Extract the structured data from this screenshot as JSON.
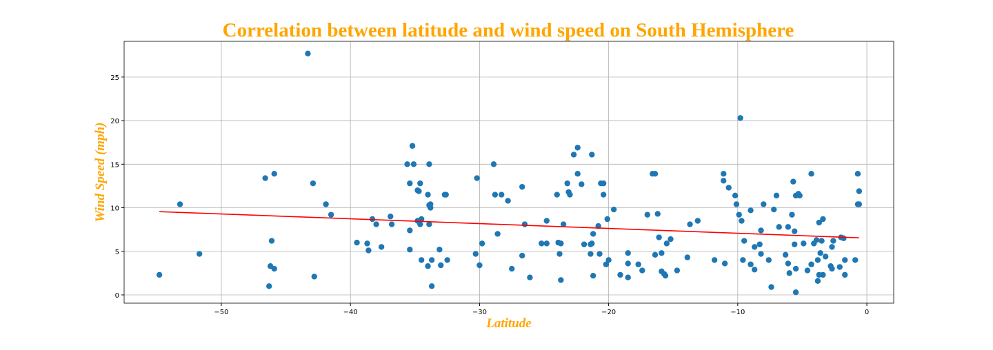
{
  "chart_data": {
    "type": "scatter",
    "title": "Correlation between latitude and wind speed on South Hemisphere",
    "x_label": "Latitude",
    "y_label": "Wind Speed (mph)",
    "color": "#1f77b4",
    "x": [
      -54.8,
      -53.2,
      -51.7,
      -46.6,
      -46.1,
      -46.3,
      -46.2,
      -45.9,
      -45.9,
      -43.3,
      -42.9,
      -42.8,
      -41.9,
      -41.5,
      -39.5,
      -38.7,
      -38.6,
      -38.3,
      -38.0,
      -37.6,
      -36.9,
      -36.8,
      -35.6,
      -35.4,
      -35.4,
      -35.4,
      -35.2,
      -35.1,
      -34.8,
      -34.8,
      -34.7,
      -34.6,
      -34.6,
      -34.5,
      -34.5,
      -34.0,
      -33.9,
      -34.0,
      -33.9,
      -33.9,
      -33.8,
      -33.7,
      -33.7,
      -33.8,
      -33.1,
      -33.0,
      -32.7,
      -32.6,
      -32.5,
      -30.3,
      -30.2,
      -30.0,
      -29.8,
      -28.9,
      -28.8,
      -28.6,
      -28.3,
      -27.8,
      -27.5,
      -26.7,
      -26.7,
      -26.5,
      -26.1,
      -25.2,
      -24.8,
      -24.8,
      -24.0,
      -23.9,
      -23.8,
      -23.7,
      -23.7,
      -23.5,
      -23.2,
      -23.1,
      -23.0,
      -22.7,
      -22.4,
      -22.4,
      -22.1,
      -21.9,
      -21.4,
      -21.4,
      -21.3,
      -21.3,
      -21.2,
      -21.2,
      -20.8,
      -20.7,
      -20.6,
      -20.4,
      -20.4,
      -20.2,
      -20.1,
      -20.0,
      -19.6,
      -19.1,
      -18.5,
      -18.5,
      -18.5,
      -17.7,
      -17.4,
      -17.0,
      -16.6,
      -16.4,
      -16.4,
      -16.2,
      -16.1,
      -15.9,
      -15.9,
      -15.7,
      -15.6,
      -15.5,
      -15.2,
      -14.7,
      -13.9,
      -13.7,
      -13.1,
      -11.8,
      -11.1,
      -11.1,
      -11.0,
      -10.7,
      -10.2,
      -10.1,
      -9.8,
      -9.9,
      -9.7,
      -9.5,
      -9.6,
      -9.0,
      -9.0,
      -8.7,
      -8.7,
      -8.3,
      -8.2,
      -8.2,
      -8.0,
      -7.6,
      -7.4,
      -7.2,
      -7.0,
      -6.8,
      -6.3,
      -6.1,
      -6.1,
      -6.0,
      -5.8,
      -5.7,
      -5.6,
      -5.6,
      -5.5,
      -5.5,
      -5.5,
      -5.3,
      -5.2,
      -4.9,
      -4.6,
      -4.3,
      -4.3,
      -4.1,
      -3.9,
      -3.8,
      -3.8,
      -3.7,
      -3.7,
      -3.6,
      -3.5,
      -3.4,
      -3.4,
      -3.2,
      -2.8,
      -2.7,
      -2.7,
      -2.6,
      -2.1,
      -2.0,
      -1.8,
      -1.7,
      -1.7,
      -0.9,
      -0.7,
      -0.7,
      -0.6,
      -0.6
    ],
    "values": [
      2.3,
      10.4,
      4.7,
      13.4,
      6.2,
      1.0,
      3.3,
      13.9,
      3.0,
      27.7,
      12.8,
      2.1,
      10.4,
      9.2,
      6.0,
      5.9,
      5.1,
      8.7,
      8.1,
      5.5,
      9.0,
      8.1,
      15.0,
      12.8,
      7.4,
      5.2,
      17.1,
      15.0,
      8.5,
      12.0,
      11.9,
      12.8,
      8.1,
      8.7,
      4.0,
      3.3,
      15.0,
      11.5,
      10.3,
      8.1,
      10.0,
      4.0,
      1.0,
      10.4,
      5.2,
      3.4,
      11.5,
      11.5,
      4.0,
      4.7,
      13.4,
      3.4,
      5.9,
      15.0,
      11.5,
      7.0,
      11.5,
      10.8,
      3.0,
      12.4,
      4.5,
      8.1,
      2.0,
      5.9,
      5.9,
      8.5,
      11.5,
      6.0,
      4.7,
      5.9,
      1.7,
      8.1,
      12.8,
      11.8,
      11.5,
      16.1,
      16.9,
      13.9,
      12.7,
      5.8,
      5.8,
      4.7,
      5.9,
      16.1,
      7.0,
      2.2,
      7.9,
      4.7,
      12.8,
      12.8,
      11.5,
      3.5,
      8.7,
      4.0,
      9.8,
      2.3,
      3.6,
      2.0,
      4.8,
      3.5,
      2.8,
      9.2,
      13.9,
      13.9,
      4.6,
      9.3,
      6.6,
      4.8,
      2.7,
      2.4,
      2.2,
      5.9,
      6.4,
      2.8,
      4.3,
      8.1,
      8.5,
      4.0,
      13.1,
      13.9,
      3.6,
      12.3,
      11.4,
      10.4,
      20.3,
      9.2,
      8.5,
      6.2,
      4.0,
      9.7,
      3.5,
      5.5,
      2.9,
      5.8,
      7.4,
      4.7,
      10.4,
      4.0,
      0.9,
      9.8,
      11.4,
      7.8,
      4.6,
      7.8,
      3.6,
      2.5,
      9.2,
      13.0,
      7.3,
      5.8,
      3.0,
      0.3,
      11.4,
      11.6,
      11.4,
      5.9,
      2.8,
      3.5,
      13.9,
      5.9,
      6.3,
      4.0,
      1.6,
      8.3,
      2.3,
      4.8,
      6.2,
      8.7,
      2.3,
      4.4,
      3.3,
      3.0,
      5.5,
      6.2,
      3.2,
      6.6,
      6.5,
      4.0,
      2.3,
      4.0,
      13.9,
      10.4,
      10.4,
      11.9
    ],
    "regression": {
      "x": [
        -54.8,
        -0.6
      ],
      "values": [
        9.55,
        6.55
      ],
      "color": "#ff0000"
    },
    "xlim": [
      -57.53,
      2.08
    ],
    "ylim": [
      -0.95,
      29.1
    ],
    "xticks": [
      {
        "value": -50,
        "label": "−50"
      },
      {
        "value": -40,
        "label": "−40"
      },
      {
        "value": -30,
        "label": "−30"
      },
      {
        "value": -20,
        "label": "−20"
      },
      {
        "value": -10,
        "label": "−10"
      },
      0
    ],
    "yticks": [
      0,
      5,
      10,
      15,
      20,
      25
    ],
    "grid": true
  }
}
